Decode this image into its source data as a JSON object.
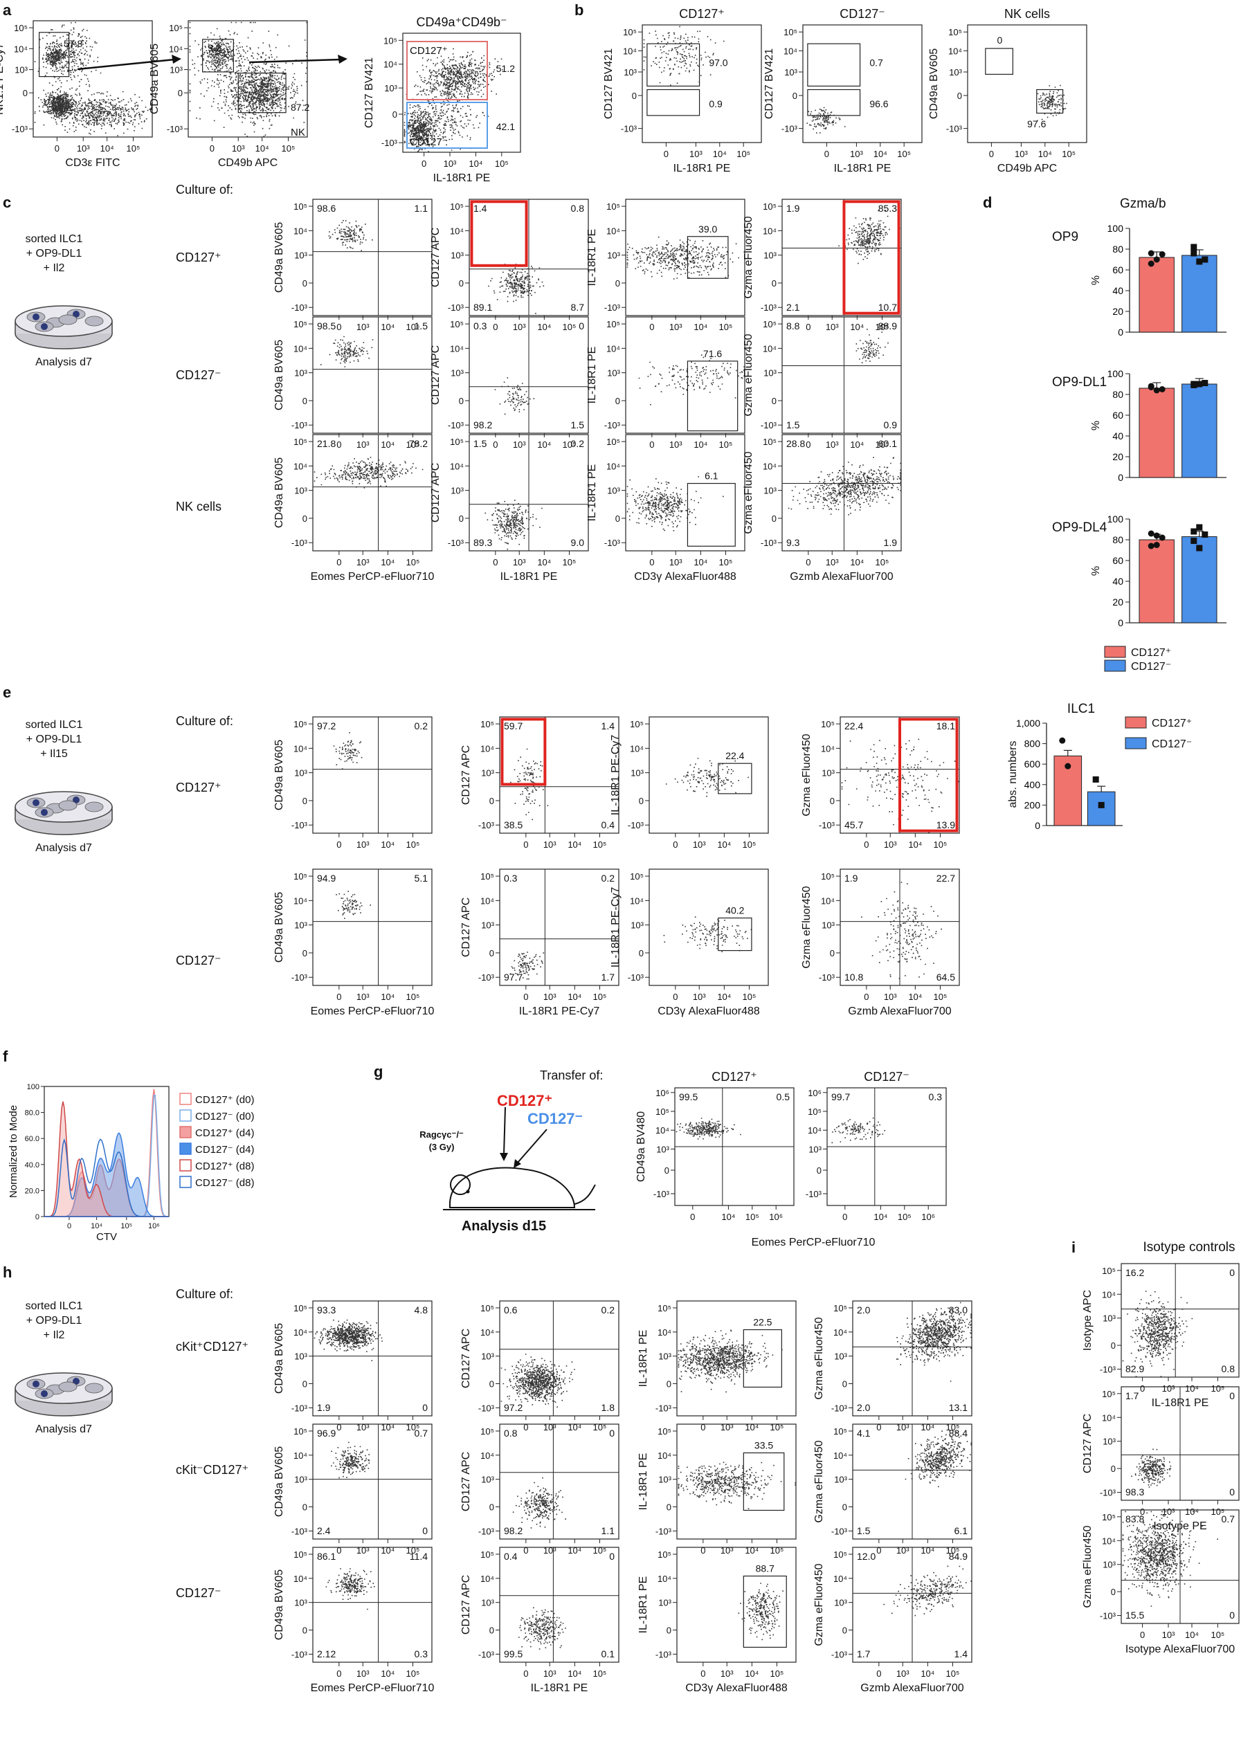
{
  "ticks": {
    "e5": "10⁵",
    "e4": "10⁴",
    "e3": "10³",
    "zero": "0",
    "neg": "-10³",
    "e6": "10⁶"
  },
  "panel_labels": {
    "a": "a",
    "b": "b",
    "c": "c",
    "d": "d",
    "e": "e",
    "f": "f",
    "g": "g",
    "h": "h",
    "i": "i"
  },
  "panel_a": {
    "plot1": {
      "ylabel": "NK1.1 PE-Cy7",
      "xlabel": "CD3ε FITC",
      "gate": "57.8"
    },
    "plot2": {
      "ylabel": "CD49a BV605",
      "xlabel": "CD49b APC",
      "gate_top": "9.2",
      "gate_nk": "87.2",
      "nk_label": "NK"
    },
    "plot3": {
      "title": "CD49a⁺CD49b⁻",
      "ylabel": "CD127 BV421",
      "xlabel": "IL-18R1 PE",
      "pos_label": "CD127⁺",
      "neg_label": "CD127⁻",
      "pos_value": "51.2",
      "neg_value": "42.1"
    }
  },
  "panel_b": {
    "plots": [
      {
        "title": "CD127⁺",
        "ylabel": "CD127 BV421",
        "xlabel": "IL-18R1 PE",
        "top": "97.0",
        "bottom": "0.9"
      },
      {
        "title": "CD127⁻",
        "ylabel": "CD127 BV421",
        "xlabel": "IL-18R1 PE",
        "top": "0.7",
        "bottom": "96.6"
      },
      {
        "title": "NK cells",
        "ylabel": "CD49a BV605",
        "xlabel": "CD49b APC",
        "top": "0",
        "bottom": "97.6"
      }
    ]
  },
  "panel_c": {
    "schematic": {
      "line1": "sorted ILC1",
      "line2": "+ OP9-DL1",
      "line3": "+ Il2",
      "caption": "Analysis d7"
    },
    "culture_of": "Culture of:",
    "rows": [
      "CD127⁺",
      "CD127⁻",
      "NK cells"
    ],
    "ylabels": [
      "CD49a BV605",
      "CD127 APC",
      "IL-18R1 PE",
      "Gzma eFluor450"
    ],
    "xlabels": [
      "Eomes PerCP-eFluor710",
      "IL-18R1 PE",
      "CD3γ AlexaFluor488",
      "Gzmb AlexaFluor700"
    ],
    "values": [
      [
        {
          "tl": "98.6",
          "tr": "1.1"
        },
        {
          "tl": "1.4",
          "tr": "0.8",
          "bl": "89.1",
          "br": "8.7"
        },
        {
          "gate": "39.0"
        },
        {
          "tl": "1.9",
          "tr": "85.3",
          "bl": "2.1",
          "br": "10.7"
        }
      ],
      [
        {
          "tl": "98.5",
          "tr": "1.5"
        },
        {
          "tl": "0.3",
          "tr": "0",
          "bl": "98.2",
          "br": "1.5"
        },
        {
          "gate": "71.6"
        },
        {
          "tl": "8.8",
          "tr": "88.9",
          "bl": "1.5",
          "br": "0.9"
        }
      ],
      [
        {
          "tl": "21.8",
          "tr": "78.2"
        },
        {
          "tl": "1.5",
          "tr": "0.2",
          "bl": "89.3",
          "br": "9.0"
        },
        {
          "gate": "6.1"
        },
        {
          "tl": "28.8",
          "tr": "60.1",
          "bl": "9.3",
          "br": "1.9"
        }
      ]
    ]
  },
  "panel_d": {
    "title": "Gzma/b",
    "ylabel": "%",
    "legend": [
      "CD127⁺",
      "CD127⁻"
    ],
    "colors": {
      "pos": "#f0736e",
      "neg": "#4a8fe8",
      "gate_red": "#e0241f",
      "gate_blue": "#5b9ee8"
    }
  },
  "panel_e": {
    "schematic": {
      "line1": "sorted ILC1",
      "line2": "+ OP9-DL1",
      "line3": "+ Il15",
      "caption": "Analysis d7"
    },
    "culture_of": "Culture of:",
    "rows": [
      "CD127⁺",
      "CD127⁻"
    ],
    "ylabels": [
      "CD49a BV605",
      "CD127 APC",
      "IL-18R1 PE-Cy7",
      "Gzma eFluor450"
    ],
    "xlabels": [
      "Eomes PerCP-eFluor710",
      "IL-18R1 PE-Cy7",
      "CD3γ AlexaFluor488",
      "Gzmb AlexaFluor700"
    ],
    "values": [
      [
        {
          "tl": "97.2",
          "tr": "0.2"
        },
        {
          "tl": "59.7",
          "tr": "1.4",
          "bl": "38.5",
          "br": "0.4"
        },
        {
          "gate": "22.4"
        },
        {
          "tl": "22.4",
          "tr": "18.1",
          "bl": "45.7",
          "br": "13.9"
        }
      ],
      [
        {
          "tl": "94.9",
          "tr": "5.1"
        },
        {
          "tl": "0.3",
          "tr": "0.2",
          "bl": "97.7",
          "br": "1.7"
        },
        {
          "gate": "40.2"
        },
        {
          "tl": "1.9",
          "tr": "22.7",
          "bl": "10.8",
          "br": "64.5"
        }
      ]
    ]
  },
  "panel_f": {
    "ylabel": "Normalized to Mode",
    "xlabel": "CTV",
    "yticks": [
      "100",
      "80.0",
      "60.0",
      "40.0",
      "20.0",
      "0"
    ],
    "legend": [
      "CD127⁺ (d0)",
      "CD127⁻ (d0)",
      "CD127⁺ (d4)",
      "CD127⁻ (d4)",
      "CD127⁺ (d8)",
      "CD127⁻ (d8)"
    ]
  },
  "panel_g": {
    "transfer_of": "Transfer of:",
    "red_label": "CD127⁺",
    "blue_label": "CD127⁻",
    "mouse_line1": "Ragcγc⁻/⁻",
    "mouse_line2": "(3 Gy)",
    "caption": "Analysis d15",
    "plots": [
      {
        "title": "CD127⁺",
        "tl": "99.5",
        "tr": "0.5"
      },
      {
        "title": "CD127⁻",
        "tl": "99.7",
        "tr": "0.3"
      }
    ],
    "ylabel": "CD49a BV480",
    "xlabel": "Eomes PerCP-eFluor710"
  },
  "panel_h": {
    "schematic": {
      "line1": "sorted ILC1",
      "line2": "+ OP9-DL1",
      "line3": "+ Il2",
      "caption": "Analysis d7"
    },
    "culture_of": "Culture of:",
    "rows": [
      "cKit⁺CD127⁺",
      "cKit⁻CD127⁺",
      "CD127⁻"
    ],
    "ylabels": [
      "CD49a BV605",
      "CD127 APC",
      "IL-18R1 PE",
      "Gzma eFluor450"
    ],
    "xlabels": [
      "Eomes PerCP-eFluor710",
      "IL-18R1 PE",
      "CD3γ AlexaFluor488",
      "Gzmb AlexaFluor700"
    ],
    "values": [
      [
        {
          "tl": "93.3",
          "tr": "4.8",
          "bl": "1.9",
          "br": "0"
        },
        {
          "tl": "0.6",
          "tr": "0.2",
          "bl": "97.2",
          "br": "1.8"
        },
        {
          "gate": "22.5"
        },
        {
          "tl": "2.0",
          "tr": "83.0",
          "bl": "2.0",
          "br": "13.1"
        }
      ],
      [
        {
          "tl": "96.9",
          "tr": "0.7",
          "bl": "2.4",
          "br": "0"
        },
        {
          "tl": "0.8",
          "tr": "0",
          "bl": "98.2",
          "br": "1.1"
        },
        {
          "gate": "33.5"
        },
        {
          "tl": "4.1",
          "tr": "88.4",
          "bl": "1.5",
          "br": "6.1"
        }
      ],
      [
        {
          "tl": "86.1",
          "tr": "11.4",
          "bl": "2.12",
          "br": "0.3"
        },
        {
          "tl": "0.4",
          "tr": "0",
          "bl": "99.5",
          "br": "0.1"
        },
        {
          "gate": "88.7"
        },
        {
          "tl": "12.0",
          "tr": "84.9",
          "bl": "1.7",
          "br": "1.4"
        }
      ]
    ]
  },
  "panel_i": {
    "title": "Isotype controls",
    "plots": [
      {
        "ylabel": "Isotype APC",
        "xlabel": "IL-18R1 PE",
        "tl": "16.2",
        "tr": "0",
        "bl": "82.9",
        "br": "0.8"
      },
      {
        "ylabel": "CD127 APC",
        "xlabel": "Isotype PE",
        "tl": "1.7",
        "tr": "0",
        "bl": "98.3",
        "br": "0"
      },
      {
        "ylabel": "Gzma eFluor450",
        "xlabel": "Isotype AlexaFluor700",
        "tl": "83.8",
        "tr": "0.7",
        "bl": "15.5",
        "br": "0"
      }
    ]
  },
  "chart_data": [
    {
      "type": "bar",
      "title": "Gzma/b",
      "subtitle": "OP9",
      "ylabel": "%",
      "ylim": [
        0,
        100
      ],
      "categories": [
        "CD127⁺",
        "CD127⁻"
      ],
      "values": [
        72,
        74
      ],
      "points": [
        [
          76,
          70,
          75,
          66
        ],
        [
          82,
          68,
          70,
          76
        ]
      ]
    },
    {
      "type": "bar",
      "title": "Gzma/b",
      "subtitle": "OP9-DL1",
      "ylabel": "%",
      "ylim": [
        0,
        100
      ],
      "categories": [
        "CD127⁺",
        "CD127⁻"
      ],
      "values": [
        86,
        90
      ],
      "points": [
        [
          87,
          84,
          85,
          88
        ],
        [
          89,
          90,
          91,
          90
        ]
      ]
    },
    {
      "type": "bar",
      "title": "Gzma/b",
      "subtitle": "OP9-DL4",
      "ylabel": "%",
      "ylim": [
        0,
        100
      ],
      "categories": [
        "CD127⁺",
        "CD127⁻"
      ],
      "values": [
        80,
        83
      ],
      "points": [
        [
          86,
          75,
          82,
          74,
          84
        ],
        [
          88,
          72,
          85,
          79,
          92
        ]
      ]
    },
    {
      "type": "bar",
      "title": "ILC1",
      "ylabel": "abs. numbers",
      "ylim": [
        0,
        1000
      ],
      "categories": [
        "CD127⁺",
        "CD127⁻"
      ],
      "values": [
        680,
        330
      ],
      "points": [
        [
          830,
          580
        ],
        [
          450,
          200
        ]
      ]
    }
  ]
}
